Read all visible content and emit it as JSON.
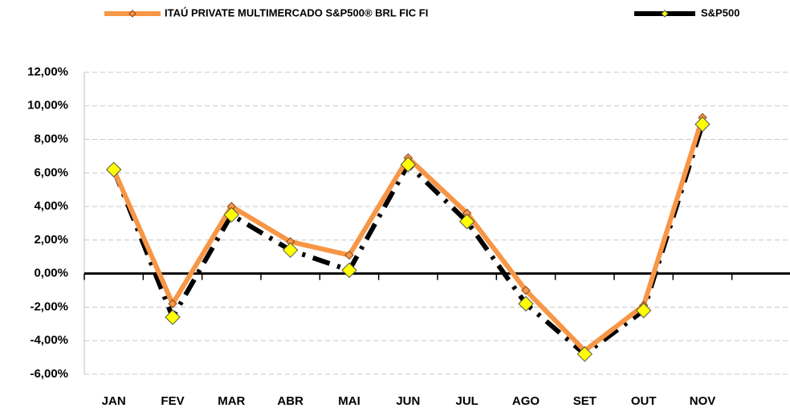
{
  "chart_data": {
    "type": "line",
    "categories": [
      "JAN",
      "FEV",
      "MAR",
      "ABR",
      "MAI",
      "JUN",
      "JUL",
      "AGO",
      "SET",
      "OUT",
      "NOV"
    ],
    "series": [
      {
        "name": "ITAÚ PRIVATE MULTIMERCADO S&P500® BRL FIC FI",
        "color": "#f79646",
        "values": [
          6.2,
          -1.8,
          4.0,
          1.9,
          1.1,
          6.9,
          3.6,
          -1.0,
          -4.6,
          -1.9,
          9.3
        ]
      },
      {
        "name": "S&P500",
        "color": "#000000",
        "values": [
          6.2,
          -2.6,
          3.5,
          1.4,
          0.2,
          6.5,
          3.1,
          -1.8,
          -4.8,
          -2.2,
          8.9
        ]
      }
    ],
    "ylim": [
      -6,
      12
    ],
    "yticks": [
      {
        "value": -6,
        "label": "-6,00%"
      },
      {
        "value": -4,
        "label": "-4,00%"
      },
      {
        "value": -2,
        "label": "-2,00%"
      },
      {
        "value": 0,
        "label": "0,00%"
      },
      {
        "value": 2,
        "label": "2,00%"
      },
      {
        "value": 4,
        "label": "4,00%"
      },
      {
        "value": 6,
        "label": "6,00%"
      },
      {
        "value": 8,
        "label": "8,00%"
      },
      {
        "value": 10,
        "label": "10,00%"
      },
      {
        "value": 12,
        "label": "12,00%"
      }
    ],
    "grid": true
  }
}
